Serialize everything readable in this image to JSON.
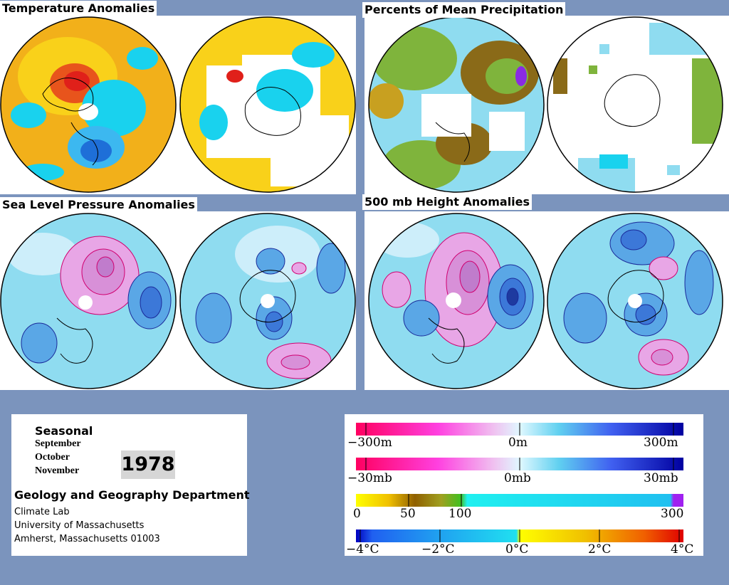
{
  "panels": {
    "temperature": {
      "title": "Temperature Anomalies"
    },
    "precipitation": {
      "title": "Percents of Mean Precipitation"
    },
    "pressure": {
      "title": "Sea Level Pressure Anomalies"
    },
    "height": {
      "title": "500 mb Height Anomalies"
    }
  },
  "info": {
    "heading": "Seasonal",
    "months": [
      "September",
      "October",
      "November"
    ],
    "year": "1978",
    "department": "Geology and Geography Department",
    "address": [
      "Climate Lab",
      "University of Massachusetts",
      "Amherst, Massachusetts 01003"
    ]
  },
  "legends": {
    "height": {
      "labels": [
        "−300m",
        "0m",
        "300m"
      ]
    },
    "pressure": {
      "labels": [
        "−30mb",
        "0mb",
        "30mb"
      ]
    },
    "precip": {
      "labels": [
        "0",
        "50",
        "100",
        "300"
      ]
    },
    "temp": {
      "labels": [
        "−4°C",
        "−2°C",
        "0°C",
        "2°C",
        "4°C"
      ]
    }
  },
  "colors": {
    "page_background": "#7b94bd",
    "ocean_base": "#8fdcf0",
    "ocean_light": "#cdeefa",
    "positive_anomaly": "#e8a6e6",
    "negative_anomaly": "#5aa7e6",
    "warm": "#f2b01a",
    "cold": "#1e6fd8",
    "dry": "#8a6a18",
    "moderate": "#7fb43c"
  }
}
